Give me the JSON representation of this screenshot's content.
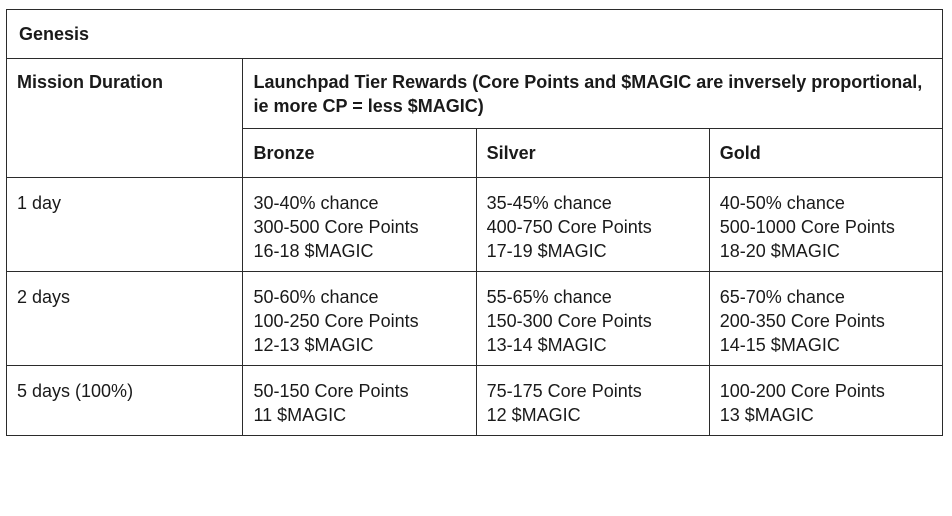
{
  "table": {
    "title": "Genesis",
    "duration_header": "Mission Duration",
    "rewards_header": "Launchpad Tier Rewards (Core Points and $MAGIC are inversely proportional, ie more CP = less $MAGIC)",
    "tiers": [
      "Bronze",
      "Silver",
      "Gold"
    ],
    "rows": [
      {
        "duration": "1 day",
        "cells": [
          [
            "30-40% chance",
            "300-500 Core Points",
            "16-18 $MAGIC"
          ],
          [
            "35-45% chance",
            "400-750 Core Points",
            "17-19 $MAGIC"
          ],
          [
            "40-50% chance",
            "500-1000 Core Points",
            "18-20 $MAGIC"
          ]
        ]
      },
      {
        "duration": "2 days",
        "cells": [
          [
            "50-60% chance",
            "100-250 Core Points",
            "12-13 $MAGIC"
          ],
          [
            "55-65% chance",
            "150-300 Core Points",
            "13-14 $MAGIC"
          ],
          [
            "65-70% chance",
            "200-350 Core Points",
            "14-15 $MAGIC"
          ]
        ]
      },
      {
        "duration": "5 days (100%)",
        "cells": [
          [
            "50-150 Core Points",
            "11 $MAGIC"
          ],
          [
            "75-175 Core Points",
            "12 $MAGIC"
          ],
          [
            "100-200 Core Points",
            "13 $MAGIC"
          ]
        ]
      }
    ]
  }
}
